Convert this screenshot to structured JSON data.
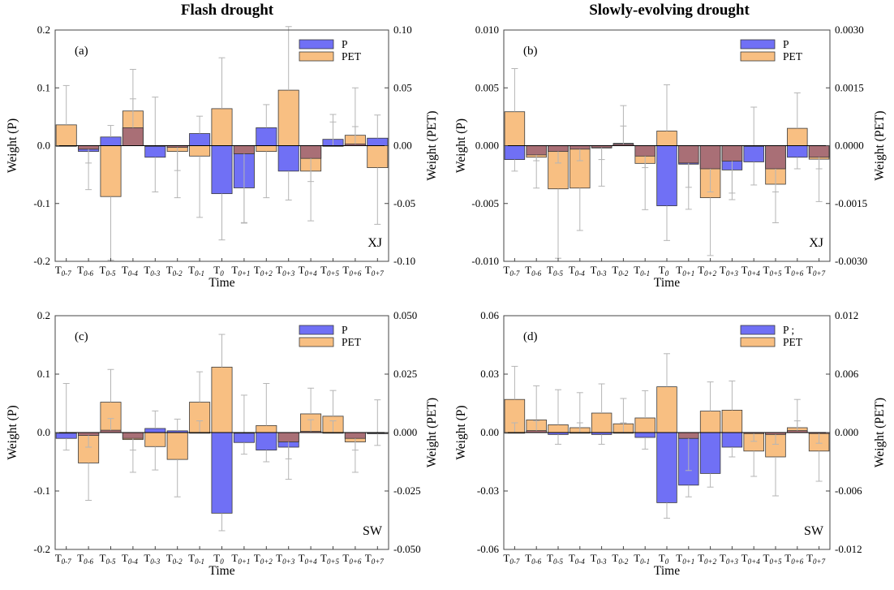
{
  "column_titles": [
    "Flash drought",
    "Slowly-evolving drought"
  ],
  "colors": {
    "P": "#7070f5",
    "PET": "#f8bf82",
    "overlap": "#a96f76",
    "edge": "#3a3a3a",
    "errorbar": "#b5b5b5"
  },
  "chart_data": [
    {
      "panel": "(a)",
      "region": "XJ",
      "type": "bar",
      "xlabel": "Time",
      "ylabel_left": "Weight (P)",
      "ylabel_right": "Weight (PET)",
      "ylim_left": [
        -0.2,
        0.2
      ],
      "ylim_right": [
        -0.1,
        0.1
      ],
      "yticks_left": [
        "-0.2",
        "-0.1",
        "0.0",
        "0.1",
        "0.2"
      ],
      "yticks_right": [
        "-0.10",
        "-0.05",
        "0.00",
        "0.05",
        "0.10"
      ],
      "legend": [
        "P",
        "PET"
      ],
      "legend_position": "top-right",
      "categories": [
        [
          "T",
          "0-7"
        ],
        [
          "T",
          "0-6"
        ],
        [
          "T",
          "0-5"
        ],
        [
          "T",
          "0-4"
        ],
        [
          "T",
          "0-3"
        ],
        [
          "T",
          "0-2"
        ],
        [
          "T",
          "0-1"
        ],
        [
          "T",
          "0"
        ],
        [
          "T",
          "0+1"
        ],
        [
          "T",
          "0+2"
        ],
        [
          "T",
          "0+3"
        ],
        [
          "T",
          "0+4"
        ],
        [
          "T",
          "0+5"
        ],
        [
          "T",
          "0+6"
        ],
        [
          "T",
          "0+7"
        ]
      ],
      "series": [
        {
          "name": "P",
          "axis": "left",
          "values": [
            0.0,
            -0.01,
            0.015,
            0.031,
            -0.02,
            -0.003,
            0.021,
            -0.083,
            -0.073,
            0.031,
            -0.044,
            -0.022,
            0.011,
            0.003,
            0.013
          ],
          "err": [
            0.0,
            0.02,
            0.02,
            0.05,
            0.06,
            0.04,
            0.03,
            0.08,
            0.06,
            0.04,
            0.05,
            0.04,
            0.03,
            0.03,
            0.04
          ]
        },
        {
          "name": "PET",
          "axis": "right",
          "values": [
            0.018,
            -0.003,
            -0.044,
            0.03,
            0.0,
            -0.005,
            -0.009,
            0.032,
            -0.007,
            -0.005,
            0.048,
            -0.022,
            0.0,
            0.009,
            -0.019
          ],
          "err": [
            0.034,
            0.035,
            0.055,
            0.036,
            0.042,
            0.04,
            0.053,
            0.044,
            0.06,
            0.04,
            0.055,
            0.043,
            0.027,
            0.041,
            0.049
          ]
        }
      ]
    },
    {
      "panel": "(b)",
      "region": "XJ",
      "type": "bar",
      "xlabel": "Time",
      "ylabel_left": "Weight (P)",
      "ylabel_right": "Weight (PET)",
      "ylim_left": [
        -0.01,
        0.01
      ],
      "ylim_right": [
        -0.003,
        0.003
      ],
      "yticks_left": [
        "-0.010",
        "-0.005",
        "0.000",
        "0.005",
        "0.010"
      ],
      "yticks_right": [
        "-0.0030",
        "-0.0015",
        "0.0000",
        "0.0015",
        "0.0030"
      ],
      "legend": [
        "P",
        "PET"
      ],
      "legend_position": "top-right",
      "categories": [
        [
          "T",
          "0-7"
        ],
        [
          "T",
          "0-6"
        ],
        [
          "T",
          "0-5"
        ],
        [
          "T",
          "0-4"
        ],
        [
          "T",
          "0-3"
        ],
        [
          "T",
          "0-2"
        ],
        [
          "T",
          "0-1"
        ],
        [
          "T",
          "0"
        ],
        [
          "T",
          "0+1"
        ],
        [
          "T",
          "0+2"
        ],
        [
          "T",
          "0+3"
        ],
        [
          "T",
          "0+4"
        ],
        [
          "T",
          "0+5"
        ],
        [
          "T",
          "0+6"
        ],
        [
          "T",
          "0+7"
        ]
      ],
      "series": [
        {
          "name": "P",
          "axis": "left",
          "values": [
            -0.0012,
            -0.0008,
            -0.0005,
            -0.0003,
            -0.0002,
            0.0002,
            -0.0009,
            -0.0052,
            -0.0016,
            -0.002,
            -0.0021,
            -0.0014,
            -0.002,
            -0.001,
            -0.001
          ],
          "err": [
            0.001,
            0.0005,
            0.001,
            0.001,
            0.001,
            0.0015,
            0.001,
            0.003,
            0.002,
            0.002,
            0.002,
            0.002,
            0.002,
            0.001,
            0.001
          ]
        },
        {
          "name": "PET",
          "axis": "right",
          "values": [
            0.00088,
            -0.0003,
            -0.00112,
            -0.0011,
            -5e-05,
            4e-05,
            -0.00046,
            0.00038,
            -0.00045,
            -0.00135,
            -0.0004,
            0.0,
            -0.001,
            0.00045,
            -0.00035
          ],
          "err": [
            0.00112,
            0.0008,
            0.0018,
            0.0011,
            0.001,
            0.001,
            0.0012,
            0.0012,
            0.0012,
            0.0015,
            0.001,
            0.001,
            0.001,
            0.00092,
            0.0011
          ]
        }
      ]
    },
    {
      "panel": "(c)",
      "region": "SW",
      "type": "bar",
      "xlabel": "Time",
      "ylabel_left": "Weight (P)",
      "ylabel_right": "Weight (PET)",
      "ylim_left": [
        -0.2,
        0.2
      ],
      "ylim_right": [
        -0.05,
        0.05
      ],
      "yticks_left": [
        "-0.2",
        "-0.1",
        "0.0",
        "0.1",
        "0.2"
      ],
      "yticks_right": [
        "-0.050",
        "-0.025",
        "0.000",
        "0.025",
        "0.050"
      ],
      "legend": [
        "P",
        "PET"
      ],
      "legend_position": "top-right",
      "categories": [
        [
          "T",
          "0-7"
        ],
        [
          "T",
          "0-6"
        ],
        [
          "T",
          "0-5"
        ],
        [
          "T",
          "0-4"
        ],
        [
          "T",
          "0-3"
        ],
        [
          "T",
          "0-2"
        ],
        [
          "T",
          "0-1"
        ],
        [
          "T",
          "0"
        ],
        [
          "T",
          "0+1"
        ],
        [
          "T",
          "0+2"
        ],
        [
          "T",
          "0+3"
        ],
        [
          "T",
          "0+4"
        ],
        [
          "T",
          "0+5"
        ],
        [
          "T",
          "0+6"
        ],
        [
          "T",
          "0+7"
        ]
      ],
      "series": [
        {
          "name": "P",
          "axis": "left",
          "values": [
            -0.01,
            -0.005,
            0.004,
            -0.01,
            0.007,
            0.003,
            0.0,
            -0.138,
            -0.017,
            -0.03,
            -0.025,
            0.002,
            0.0,
            -0.01,
            -0.002
          ],
          "err": [
            0.02,
            0.02,
            0.02,
            0.02,
            0.03,
            0.02,
            0.02,
            0.03,
            0.02,
            0.02,
            0.02,
            0.02,
            0.02,
            0.02,
            0.02
          ]
        },
        {
          "name": "PET",
          "axis": "right",
          "values": [
            0.0,
            -0.013,
            0.013,
            -0.003,
            -0.006,
            -0.0115,
            0.013,
            0.028,
            0.0,
            0.003,
            -0.004,
            0.008,
            0.007,
            -0.004,
            0.0
          ],
          "err": [
            0.021,
            0.016,
            0.014,
            0.014,
            0.01,
            0.016,
            0.013,
            0.014,
            0.016,
            0.018,
            0.016,
            0.011,
            0.011,
            0.013,
            0.014
          ]
        }
      ]
    },
    {
      "panel": "(d)",
      "region": "SW",
      "type": "bar",
      "xlabel": "Time",
      "ylabel_left": "Weight (P)",
      "ylabel_right": "Weight (PET)",
      "ylim_left": [
        -0.06,
        0.06
      ],
      "ylim_right": [
        -0.012,
        0.012
      ],
      "yticks_left": [
        "-0.06",
        "-0.03",
        "0.00",
        "0.03",
        "0.06"
      ],
      "yticks_right": [
        "-0.012",
        "-0.006",
        "0.000",
        "0.006",
        "0.012"
      ],
      "legend": [
        "P ;",
        "PET"
      ],
      "legend_position": "top-right",
      "categories": [
        [
          "T",
          "0-7"
        ],
        [
          "T",
          "0-6"
        ],
        [
          "T",
          "0-5"
        ],
        [
          "T",
          "0-4"
        ],
        [
          "T",
          "0-3"
        ],
        [
          "T",
          "0-2"
        ],
        [
          "T",
          "0-1"
        ],
        [
          "T",
          "0"
        ],
        [
          "T",
          "0+1"
        ],
        [
          "T",
          "0+2"
        ],
        [
          "T",
          "0+3"
        ],
        [
          "T",
          "0+4"
        ],
        [
          "T",
          "0+5"
        ],
        [
          "T",
          "0+6"
        ],
        [
          "T",
          "0+7"
        ]
      ],
      "series": [
        {
          "name": "P",
          "axis": "left",
          "values": [
            0.0,
            0.001,
            -0.001,
            0.0,
            -0.001,
            0.0,
            -0.0025,
            -0.036,
            -0.027,
            -0.021,
            -0.0075,
            -0.0005,
            -0.001,
            0.001,
            -0.0005
          ],
          "err": [
            0.005,
            0.005,
            0.005,
            0.005,
            0.005,
            0.005,
            0.006,
            0.008,
            0.006,
            0.007,
            0.005,
            0.004,
            0.005,
            0.005,
            0.005
          ]
        },
        {
          "name": "PET",
          "axis": "right",
          "values": [
            0.0034,
            0.0013,
            0.0008,
            0.0005,
            0.002,
            0.0009,
            0.0015,
            0.0047,
            -0.0006,
            0.0022,
            0.0023,
            -0.0019,
            -0.0025,
            0.0005,
            -0.0019
          ],
          "err": [
            0.0034,
            0.0035,
            0.0036,
            0.0036,
            0.003,
            0.0026,
            0.0028,
            0.0034,
            0.0033,
            0.003,
            0.003,
            0.0026,
            0.004,
            0.0029,
            0.0031
          ]
        }
      ]
    }
  ]
}
